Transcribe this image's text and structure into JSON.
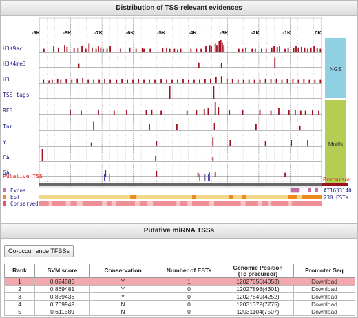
{
  "evidence_panel": {
    "title": "Distribution of TSS-relevant evidences"
  },
  "axis": {
    "ticks": [
      "-9K",
      "-8K",
      "-7K",
      "-6K",
      "-5K",
      "-4K",
      "-3K",
      "-2K",
      "-1K",
      "0K"
    ]
  },
  "tracks": {
    "H3K9ac": [
      [
        0.6,
        0.3
      ],
      [
        1.85,
        0.5
      ],
      [
        2.45,
        0.4
      ],
      [
        3.25,
        0.6
      ],
      [
        3.55,
        0.45
      ],
      [
        4.45,
        0.35
      ],
      [
        4.95,
        0.4
      ],
      [
        5.45,
        0.55
      ],
      [
        5.95,
        0.3
      ],
      [
        6.35,
        0.7
      ],
      [
        6.75,
        0.4
      ],
      [
        7.25,
        0.3
      ],
      [
        7.55,
        0.5
      ],
      [
        7.85,
        0.4
      ],
      [
        8.15,
        0.3
      ],
      [
        8.65,
        0.3
      ],
      [
        9.05,
        0.5
      ],
      [
        10.35,
        0.3
      ],
      [
        11.55,
        0.4
      ],
      [
        12.35,
        0.3
      ],
      [
        13.15,
        0.35
      ],
      [
        13.35,
        0.3
      ],
      [
        14.15,
        0.3
      ],
      [
        15.75,
        0.35
      ],
      [
        16.25,
        0.4
      ],
      [
        16.65,
        0.3
      ],
      [
        17.25,
        0.3
      ],
      [
        17.65,
        0.25
      ],
      [
        18.05,
        0.3
      ],
      [
        19.35,
        0.3
      ],
      [
        20.05,
        0.3
      ],
      [
        20.65,
        0.3
      ],
      [
        21.25,
        0.5
      ],
      [
        21.75,
        0.6
      ],
      [
        21.95,
        0.5
      ],
      [
        22.45,
        0.7
      ],
      [
        22.65,
        0.6
      ],
      [
        22.95,
        0.9
      ],
      [
        23.15,
        1.0
      ],
      [
        23.35,
        0.8
      ],
      [
        23.55,
        0.6
      ],
      [
        25.45,
        0.3
      ],
      [
        25.95,
        0.3
      ],
      [
        26.35,
        0.4
      ],
      [
        27.15,
        0.3
      ],
      [
        27.55,
        0.3
      ],
      [
        28.35,
        0.3
      ],
      [
        28.95,
        0.3
      ],
      [
        29.65,
        0.4
      ],
      [
        29.95,
        0.5
      ],
      [
        30.35,
        0.45
      ],
      [
        30.65,
        0.5
      ],
      [
        31.35,
        0.3
      ],
      [
        31.75,
        0.4
      ],
      [
        32.45,
        0.35
      ],
      [
        32.75,
        0.5
      ],
      [
        33.05,
        0.4
      ],
      [
        33.45,
        0.45
      ],
      [
        33.85,
        0.4
      ],
      [
        34.25,
        0.3
      ],
      [
        34.65,
        0.4
      ],
      [
        35.05,
        0.5
      ],
      [
        35.45,
        0.35
      ],
      [
        35.85,
        0.3
      ]
    ],
    "H3K4me3": [
      [
        5.05,
        0.3
      ],
      [
        20.35,
        0.4
      ],
      [
        23.25,
        0.35
      ],
      [
        30.05,
        0.8
      ]
    ],
    "H3": [
      [
        0.55,
        0.3
      ],
      [
        1.25,
        0.25
      ],
      [
        1.65,
        0.3
      ],
      [
        2.35,
        0.35
      ],
      [
        2.75,
        0.3
      ],
      [
        3.45,
        0.35
      ],
      [
        4.15,
        0.3
      ],
      [
        4.85,
        0.4
      ],
      [
        5.55,
        0.45
      ],
      [
        6.25,
        0.3
      ],
      [
        6.95,
        0.3
      ],
      [
        7.65,
        0.3
      ],
      [
        8.35,
        0.35
      ],
      [
        9.05,
        0.3
      ],
      [
        9.85,
        0.3
      ],
      [
        10.55,
        0.35
      ],
      [
        11.25,
        0.3
      ],
      [
        11.95,
        0.3
      ],
      [
        12.65,
        0.35
      ],
      [
        13.35,
        0.3
      ],
      [
        14.05,
        0.3
      ],
      [
        14.75,
        0.3
      ],
      [
        15.55,
        0.35
      ],
      [
        16.25,
        0.3
      ],
      [
        16.95,
        0.3
      ],
      [
        17.65,
        0.3
      ],
      [
        18.35,
        0.35
      ],
      [
        19.05,
        0.3
      ],
      [
        19.75,
        0.3
      ],
      [
        20.45,
        0.3
      ],
      [
        21.15,
        0.35
      ],
      [
        21.85,
        0.4
      ],
      [
        22.55,
        0.5
      ],
      [
        23.25,
        0.6
      ],
      [
        23.95,
        0.4
      ],
      [
        24.65,
        0.35
      ],
      [
        25.35,
        0.3
      ],
      [
        26.05,
        0.3
      ],
      [
        26.75,
        0.3
      ],
      [
        27.45,
        0.3
      ],
      [
        28.15,
        0.3
      ],
      [
        28.85,
        0.35
      ],
      [
        29.55,
        0.35
      ],
      [
        30.25,
        0.4
      ],
      [
        30.95,
        0.3
      ],
      [
        31.65,
        0.35
      ],
      [
        32.35,
        0.35
      ],
      [
        33.05,
        0.3
      ],
      [
        33.75,
        0.35
      ],
      [
        34.45,
        0.3
      ],
      [
        35.15,
        0.3
      ],
      [
        35.85,
        0.3
      ]
    ],
    "TSS tags": [
      [
        16.65,
        1.0
      ],
      [
        22.25,
        1.0
      ]
    ],
    "REG": [
      [
        3.95,
        0.4
      ],
      [
        5.35,
        0.3
      ],
      [
        7.55,
        0.4
      ],
      [
        9.55,
        0.3
      ],
      [
        11.15,
        0.35
      ],
      [
        13.65,
        0.35
      ],
      [
        14.35,
        0.4
      ],
      [
        15.55,
        0.3
      ],
      [
        18.85,
        0.3
      ],
      [
        20.05,
        0.35
      ],
      [
        21.05,
        0.45
      ],
      [
        21.55,
        0.55
      ],
      [
        22.45,
        1.0
      ],
      [
        22.85,
        0.6
      ],
      [
        24.25,
        0.35
      ],
      [
        25.95,
        0.4
      ],
      [
        28.15,
        0.35
      ],
      [
        29.55,
        0.3
      ],
      [
        30.55,
        0.5
      ],
      [
        31.85,
        0.35
      ],
      [
        32.65,
        0.4
      ],
      [
        33.35,
        0.3
      ],
      [
        33.95,
        0.3
      ],
      [
        34.85,
        0.35
      ],
      [
        35.65,
        0.3
      ]
    ],
    "Inr": [
      [
        6.95,
        0.7
      ],
      [
        14.05,
        0.5
      ],
      [
        17.55,
        0.5
      ],
      [
        22.35,
        0.6
      ],
      [
        27.65,
        0.5
      ],
      [
        33.25,
        0.4
      ]
    ],
    "Y": [
      [
        6.65,
        0.3
      ],
      [
        14.95,
        0.4
      ],
      [
        22.15,
        0.7
      ],
      [
        24.35,
        0.5
      ],
      [
        28.85,
        0.4
      ],
      [
        32.15,
        0.5
      ],
      [
        34.25,
        0.5
      ]
    ],
    "CA": [
      [
        0.4,
        1.0
      ],
      [
        14.85,
        0.45
      ],
      [
        22.15,
        0.35
      ]
    ],
    "GA": [
      [
        8.45,
        0.5
      ],
      [
        14.95,
        0.45
      ],
      [
        20.25,
        0.3
      ],
      [
        22.45,
        0.4
      ],
      [
        31.35,
        0.3
      ]
    ]
  },
  "track_labels": {
    "h3k9ac": "H3K9ac",
    "h3k4me3": "H3K4me3",
    "h3": "H3",
    "tss_tags": "TSS tags",
    "reg": "REG",
    "inr": "Inr",
    "y": "Y",
    "ca": "CA",
    "ga": "GA",
    "putative_tss": "Putative TSS",
    "exons": "Exons",
    "est": "EST",
    "conserved": "Conserved"
  },
  "side_labels": {
    "ngs": "NGS",
    "motifs": "Motifs",
    "precursor": "Precursor",
    "gene": "AT1G33140",
    "est_count": "230 ESTs"
  },
  "putative_tss_marks": [
    8.3,
    8.95,
    20.45,
    21.15,
    21.55
  ],
  "colors": {
    "bar": "#a01020",
    "ngs": "#8fd1e3",
    "motifs": "#b5cc55",
    "precursor": "#9d1020",
    "est": "#f4d88a",
    "conserved": "#f29aa2",
    "exon": "#c070a8",
    "label": "#1a1a80",
    "tss_label": "#e02020",
    "selected_row": "#f3a8ad"
  },
  "tss_panel": {
    "title": "Putative miRNA TSSs"
  },
  "cooccurrence_button": "Co-occurrence TFBSs",
  "table": {
    "headers": [
      "Rank",
      "SVM score",
      "Conservation",
      "Number of ESTs",
      "Genomic Position",
      "(To precursor)",
      "Promoter Seq"
    ],
    "rows": [
      [
        "1",
        "0.824585",
        "Y",
        "1",
        "12027650(4053)",
        "Download"
      ],
      [
        "2",
        "0.869481",
        "Y",
        "0",
        "12027898(4301)",
        "Download"
      ],
      [
        "3",
        "0.839436",
        "Y",
        "0",
        "12027849(4252)",
        "Download"
      ],
      [
        "4",
        "0.709949",
        "N",
        "0",
        "12031372(7775)",
        "Download"
      ],
      [
        "5",
        "0.611589",
        "N",
        "0",
        "12031104(7507)",
        "Download"
      ]
    ],
    "selected_row": 0
  }
}
